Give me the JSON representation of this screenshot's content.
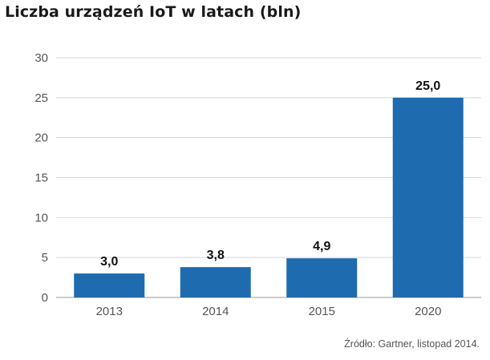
{
  "chart_data": {
    "type": "bar",
    "title": "Liczba urządzeń IoT w latach (bln)",
    "categories": [
      "2013",
      "2014",
      "2015",
      "2020"
    ],
    "values": [
      3.0,
      3.8,
      4.9,
      25.0
    ],
    "value_labels": [
      "3,0",
      "3,8",
      "4,9",
      "25,0"
    ],
    "yticks": [
      0,
      5,
      10,
      15,
      20,
      25,
      30
    ],
    "ylim": [
      0,
      30
    ],
    "xlabel": "",
    "ylabel": "",
    "grid": true,
    "bar_color": "#1f6bb0",
    "source": "Źródło: Gartner, listopad 2014."
  }
}
